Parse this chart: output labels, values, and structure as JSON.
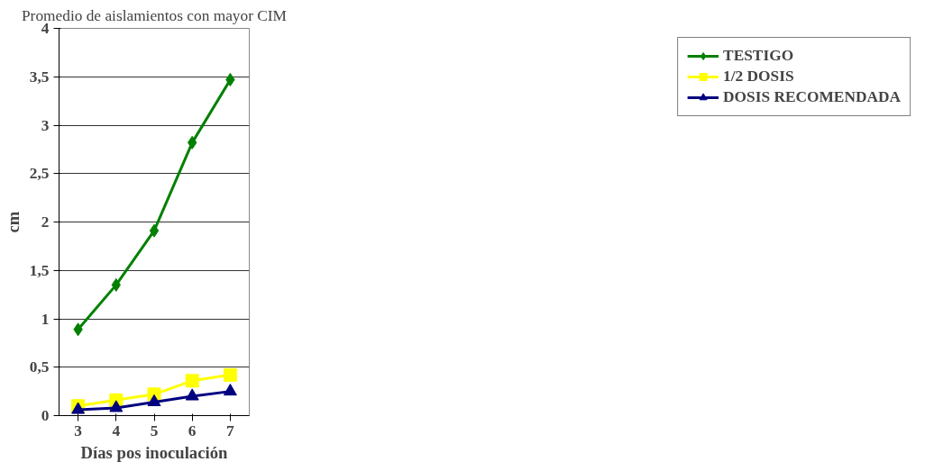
{
  "chart_data": {
    "type": "line",
    "title": "Promedio de aislamientos con mayor CIM",
    "xlabel": "Días pos inoculación",
    "ylabel": "cm",
    "categories": [
      "3",
      "4",
      "5",
      "6",
      "7"
    ],
    "series": [
      {
        "name": "TESTIGO",
        "color": "#008000",
        "marker": "diamond",
        "values": [
          0.89,
          1.35,
          1.91,
          2.82,
          3.47
        ]
      },
      {
        "name": "1/2 DOSIS",
        "color": "#ffff00",
        "marker": "square",
        "values": [
          0.1,
          0.16,
          0.22,
          0.36,
          0.42
        ]
      },
      {
        "name": "DOSIS RECOMENDADA",
        "color": "#000080",
        "marker": "triangle",
        "values": [
          0.06,
          0.08,
          0.14,
          0.2,
          0.25
        ]
      }
    ],
    "ylim": [
      0,
      4
    ],
    "yticks": [
      0,
      {
        "value": 0.5,
        "label": "0,5"
      },
      1,
      {
        "value": 1.5,
        "label": "1,5"
      },
      2,
      {
        "value": 2.5,
        "label": "2,5"
      },
      3,
      {
        "value": 3.5,
        "label": "3,5"
      },
      4
    ],
    "grid": "y",
    "legend": "right",
    "line_style": "solid"
  }
}
